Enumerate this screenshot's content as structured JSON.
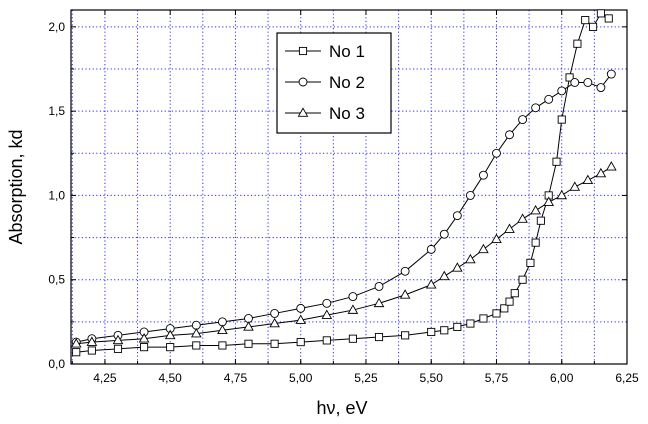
{
  "chart_data": {
    "type": "line",
    "title": "",
    "xlabel": "hν, eV",
    "ylabel": "Absorption, kd",
    "xlim": [
      4.12,
      6.25
    ],
    "ylim": [
      0.0,
      2.1
    ],
    "xticks": [
      "4,25",
      "4,50",
      "4,75",
      "5,00",
      "5,25",
      "5,50",
      "5,75",
      "6,00",
      "6,25"
    ],
    "xtick_values": [
      4.25,
      4.5,
      4.75,
      5.0,
      5.25,
      5.5,
      5.75,
      6.0,
      6.25
    ],
    "yticks": [
      "0,0",
      "0,5",
      "1,0",
      "1,5",
      "2,0"
    ],
    "ytick_values": [
      0.0,
      0.5,
      1.0,
      1.5,
      2.0
    ],
    "grid": true,
    "legend": "top-center",
    "series": [
      {
        "name": "No 1",
        "marker": "square",
        "x": [
          4.14,
          4.2,
          4.3,
          4.4,
          4.5,
          4.6,
          4.7,
          4.8,
          4.9,
          5.0,
          5.1,
          5.2,
          5.3,
          5.4,
          5.5,
          5.55,
          5.6,
          5.65,
          5.7,
          5.75,
          5.78,
          5.8,
          5.82,
          5.85,
          5.88,
          5.9,
          5.92,
          5.95,
          5.98,
          6.0,
          6.03,
          6.06,
          6.09,
          6.12,
          6.15,
          6.18
        ],
        "y": [
          0.07,
          0.08,
          0.09,
          0.1,
          0.1,
          0.11,
          0.11,
          0.12,
          0.12,
          0.13,
          0.14,
          0.15,
          0.16,
          0.17,
          0.19,
          0.2,
          0.22,
          0.24,
          0.27,
          0.3,
          0.33,
          0.37,
          0.42,
          0.5,
          0.6,
          0.72,
          0.85,
          1.0,
          1.2,
          1.45,
          1.7,
          1.9,
          2.04,
          2.0,
          2.08,
          2.05
        ]
      },
      {
        "name": "No 2",
        "marker": "circle",
        "x": [
          4.14,
          4.2,
          4.3,
          4.4,
          4.5,
          4.6,
          4.7,
          4.8,
          4.9,
          5.0,
          5.1,
          5.2,
          5.3,
          5.4,
          5.5,
          5.55,
          5.6,
          5.65,
          5.7,
          5.75,
          5.8,
          5.85,
          5.9,
          5.95,
          6.0,
          6.05,
          6.1,
          6.15,
          6.19
        ],
        "y": [
          0.13,
          0.15,
          0.17,
          0.19,
          0.21,
          0.23,
          0.25,
          0.27,
          0.3,
          0.33,
          0.36,
          0.4,
          0.46,
          0.55,
          0.68,
          0.77,
          0.88,
          1.0,
          1.12,
          1.25,
          1.36,
          1.45,
          1.52,
          1.57,
          1.62,
          1.67,
          1.67,
          1.64,
          1.72
        ]
      },
      {
        "name": "No 3",
        "marker": "triangle",
        "x": [
          4.14,
          4.2,
          4.3,
          4.4,
          4.5,
          4.6,
          4.7,
          4.8,
          4.9,
          5.0,
          5.1,
          5.2,
          5.3,
          5.4,
          5.5,
          5.55,
          5.6,
          5.65,
          5.7,
          5.75,
          5.8,
          5.85,
          5.9,
          5.95,
          6.0,
          6.05,
          6.1,
          6.15,
          6.19
        ],
        "y": [
          0.12,
          0.13,
          0.14,
          0.15,
          0.17,
          0.18,
          0.2,
          0.22,
          0.24,
          0.26,
          0.29,
          0.32,
          0.36,
          0.41,
          0.47,
          0.52,
          0.57,
          0.62,
          0.68,
          0.74,
          0.8,
          0.86,
          0.91,
          0.96,
          1.0,
          1.05,
          1.09,
          1.13,
          1.17
        ]
      }
    ]
  }
}
